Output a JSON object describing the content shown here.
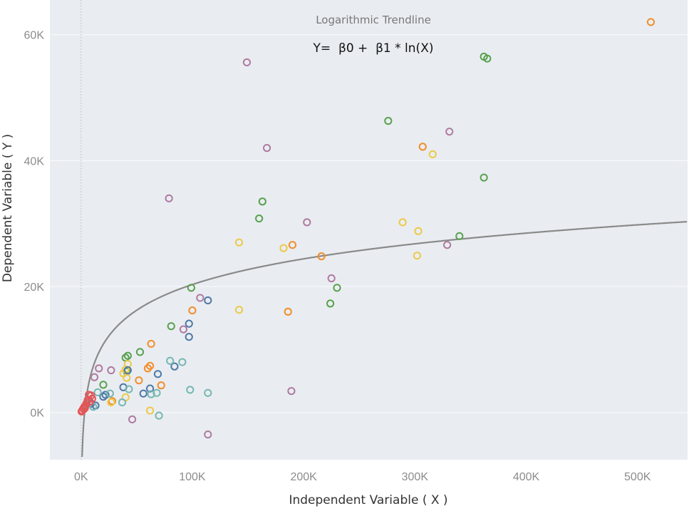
{
  "chart_data": {
    "type": "scatter",
    "title": "Logarithmic Trendline",
    "annotation": "Y=  β0 +  β1 * ln(X)",
    "xlabel": "Independent Variable ( X )",
    "ylabel": "Dependent Variable ( Y )",
    "xlim": [
      -28000,
      545000
    ],
    "ylim": [
      -7500,
      65500
    ],
    "x_ticks": [
      0,
      100000,
      200000,
      300000,
      400000,
      500000
    ],
    "x_tick_labels": [
      "0K",
      "100K",
      "200K",
      "300K",
      "400K",
      "500K"
    ],
    "y_ticks": [
      0,
      20000,
      40000,
      60000
    ],
    "y_tick_labels": [
      "0K",
      "20K",
      "40K",
      "60K"
    ],
    "grid": true,
    "colors": {
      "background": "#e9edf1",
      "grid": "#f7f9fb",
      "trendline": "#8a8a8a",
      "zero_line": "#b5bcc3"
    },
    "trendline": {
      "model": "logarithmic",
      "b0": -47500,
      "b1": 5890
    },
    "series": [
      {
        "color": "#f28e2b",
        "points": [
          [
            512000,
            62000
          ],
          [
            307000,
            42200
          ],
          [
            190000,
            26600
          ],
          [
            216000,
            24800
          ],
          [
            186000,
            16000
          ],
          [
            100000,
            16200
          ],
          [
            63000,
            10900
          ],
          [
            62000,
            7400
          ],
          [
            60000,
            7000
          ],
          [
            52000,
            5100
          ],
          [
            72000,
            4300
          ],
          [
            28000,
            1800
          ]
        ]
      },
      {
        "color": "#59a14f",
        "points": [
          [
            362000,
            56500
          ],
          [
            365000,
            56200
          ],
          [
            276000,
            46300
          ],
          [
            362000,
            37300
          ],
          [
            163000,
            33500
          ],
          [
            160000,
            30800
          ],
          [
            340000,
            28000
          ],
          [
            230000,
            19800
          ],
          [
            224000,
            17300
          ],
          [
            99000,
            19800
          ],
          [
            81000,
            13700
          ],
          [
            53000,
            9600
          ],
          [
            42000,
            9000
          ],
          [
            40000,
            8700
          ],
          [
            41000,
            6500
          ],
          [
            20000,
            4400
          ]
        ]
      },
      {
        "color": "#b07aa1",
        "points": [
          [
            149000,
            55600
          ],
          [
            331000,
            44600
          ],
          [
            167000,
            42000
          ],
          [
            79000,
            34000
          ],
          [
            203000,
            30200
          ],
          [
            329000,
            26600
          ],
          [
            225000,
            21300
          ],
          [
            107000,
            18200
          ],
          [
            92000,
            13200
          ],
          [
            27000,
            6700
          ],
          [
            16000,
            7000
          ],
          [
            12000,
            5600
          ],
          [
            189000,
            3400
          ],
          [
            46000,
            -1100
          ],
          [
            114000,
            -3500
          ]
        ]
      },
      {
        "color": "#edc948",
        "points": [
          [
            316000,
            41000
          ],
          [
            289000,
            30200
          ],
          [
            303000,
            28800
          ],
          [
            182000,
            26100
          ],
          [
            142000,
            27000
          ],
          [
            302000,
            24900
          ],
          [
            142000,
            16300
          ],
          [
            42000,
            7700
          ],
          [
            40000,
            6800
          ],
          [
            38000,
            6200
          ],
          [
            41000,
            5500
          ],
          [
            40000,
            2400
          ],
          [
            62000,
            300
          ],
          [
            27000,
            1600
          ]
        ]
      },
      {
        "color": "#4e79a7",
        "points": [
          [
            114000,
            17800
          ],
          [
            97000,
            14100
          ],
          [
            97000,
            12000
          ],
          [
            84000,
            7300
          ],
          [
            69000,
            6100
          ],
          [
            42000,
            6700
          ],
          [
            38000,
            4000
          ],
          [
            62000,
            3800
          ],
          [
            56000,
            3000
          ],
          [
            20000,
            2500
          ],
          [
            22000,
            2800
          ],
          [
            13000,
            1100
          ],
          [
            9000,
            1400
          ]
        ]
      },
      {
        "color": "#76b7b2",
        "points": [
          [
            80000,
            8200
          ],
          [
            91000,
            8000
          ],
          [
            98000,
            3600
          ],
          [
            114000,
            3100
          ],
          [
            68000,
            3100
          ],
          [
            63000,
            2900
          ],
          [
            43000,
            3700
          ],
          [
            37000,
            1600
          ],
          [
            26000,
            3000
          ],
          [
            15000,
            3200
          ],
          [
            70000,
            -500
          ],
          [
            11000,
            900
          ]
        ]
      },
      {
        "color": "#e15759",
        "points": [
          [
            7000,
            2800
          ],
          [
            9000,
            2700
          ],
          [
            6000,
            2000
          ],
          [
            5000,
            1500
          ],
          [
            8000,
            1700
          ],
          [
            4000,
            1100
          ],
          [
            3000,
            900
          ],
          [
            2000,
            600
          ],
          [
            1000,
            300
          ],
          [
            500,
            150
          ],
          [
            3500,
            700
          ],
          [
            2500,
            500
          ],
          [
            10000,
            2200
          ]
        ]
      }
    ]
  }
}
